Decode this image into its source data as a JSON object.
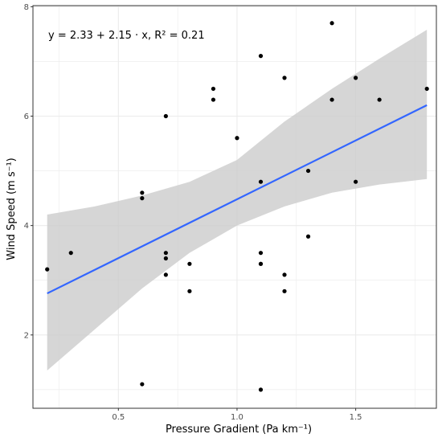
{
  "chart_data": {
    "type": "scatter",
    "xlabel": "Pressure Gradient (Pa km⁻¹)",
    "ylabel": "Wind Speed (m s⁻¹)",
    "xlim": [
      0.14,
      1.84
    ],
    "ylim": [
      0.66,
      8.02
    ],
    "x_ticks": [
      0.5,
      1.0,
      1.5
    ],
    "x_tick_labels": [
      "0.5",
      "1.0",
      "1.5"
    ],
    "y_ticks": [
      2,
      4,
      6,
      8
    ],
    "y_tick_labels": [
      "2",
      "4",
      "6",
      "8"
    ],
    "grid": true,
    "annotation": "y = 2.33 + 2.15 · x,  R² = 0.21",
    "points": [
      {
        "x": 0.2,
        "y": 3.2
      },
      {
        "x": 0.3,
        "y": 3.5
      },
      {
        "x": 0.6,
        "y": 4.6
      },
      {
        "x": 0.6,
        "y": 4.5
      },
      {
        "x": 0.6,
        "y": 1.1
      },
      {
        "x": 0.7,
        "y": 6.0
      },
      {
        "x": 0.7,
        "y": 3.5
      },
      {
        "x": 0.7,
        "y": 3.4
      },
      {
        "x": 0.7,
        "y": 3.1
      },
      {
        "x": 0.8,
        "y": 3.3
      },
      {
        "x": 0.8,
        "y": 2.8
      },
      {
        "x": 0.9,
        "y": 6.5
      },
      {
        "x": 0.9,
        "y": 6.3
      },
      {
        "x": 1.0,
        "y": 5.6
      },
      {
        "x": 1.1,
        "y": 7.1
      },
      {
        "x": 1.1,
        "y": 4.8
      },
      {
        "x": 1.1,
        "y": 3.5
      },
      {
        "x": 1.1,
        "y": 3.3
      },
      {
        "x": 1.1,
        "y": 3.3
      },
      {
        "x": 1.1,
        "y": 1.0
      },
      {
        "x": 1.2,
        "y": 6.7
      },
      {
        "x": 1.2,
        "y": 3.1
      },
      {
        "x": 1.2,
        "y": 2.8
      },
      {
        "x": 1.3,
        "y": 5.0
      },
      {
        "x": 1.3,
        "y": 3.8
      },
      {
        "x": 1.4,
        "y": 7.7
      },
      {
        "x": 1.4,
        "y": 6.3
      },
      {
        "x": 1.5,
        "y": 6.7
      },
      {
        "x": 1.5,
        "y": 4.8
      },
      {
        "x": 1.6,
        "y": 6.3
      },
      {
        "x": 1.8,
        "y": 6.5
      }
    ],
    "fit_line": {
      "intercept": 2.33,
      "slope": 2.15,
      "x_range": [
        0.2,
        1.8
      ],
      "color": "#3366FF"
    },
    "confidence_band": {
      "color": "#cccccc",
      "x": [
        0.2,
        0.4,
        0.6,
        0.8,
        1.0,
        1.2,
        1.4,
        1.6,
        1.8
      ],
      "lower": [
        1.35,
        2.1,
        2.85,
        3.5,
        4.0,
        4.35,
        4.6,
        4.75,
        4.85
      ],
      "upper": [
        4.2,
        4.35,
        4.55,
        4.8,
        5.2,
        5.9,
        6.5,
        7.05,
        7.58
      ]
    },
    "point_color": "#000000",
    "panel_background": "#ffffff",
    "grid_color": "#ebebeb",
    "border_color": "#333333"
  }
}
